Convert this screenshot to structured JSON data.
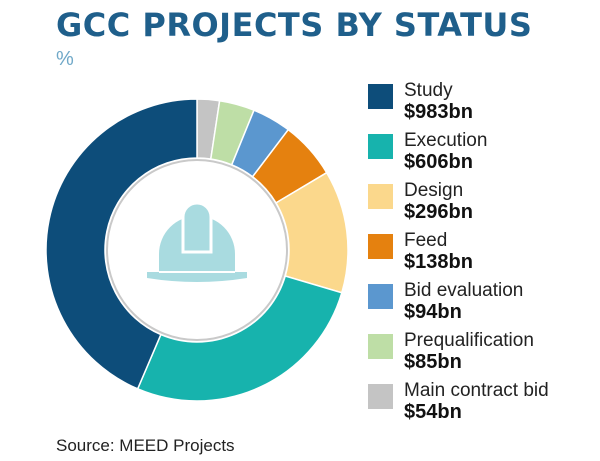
{
  "title": "GCC PROJECTS BY STATUS",
  "unit": "%",
  "source": "Source: MEED Projects",
  "icon": "hard-hat-icon",
  "chart_data": {
    "type": "pie",
    "variant": "donut",
    "categories": [
      "Study",
      "Execution",
      "Design",
      "Feed",
      "Bid evaluation",
      "Prequalification",
      "Main contract bid"
    ],
    "value_labels": [
      "$983bn",
      "$606bn",
      "$296bn",
      "$138bn",
      "$94bn",
      "$85bn",
      "$54bn"
    ],
    "values": [
      983,
      606,
      296,
      138,
      94,
      85,
      54
    ],
    "value_unit": "$bn",
    "colors": [
      "#0d4d7a",
      "#17b3ad",
      "#fbd88c",
      "#e5810f",
      "#5b97cf",
      "#bedea6",
      "#c4c4c4"
    ],
    "start": "top, clockwise from Main contract bid",
    "legend_position": "right"
  }
}
